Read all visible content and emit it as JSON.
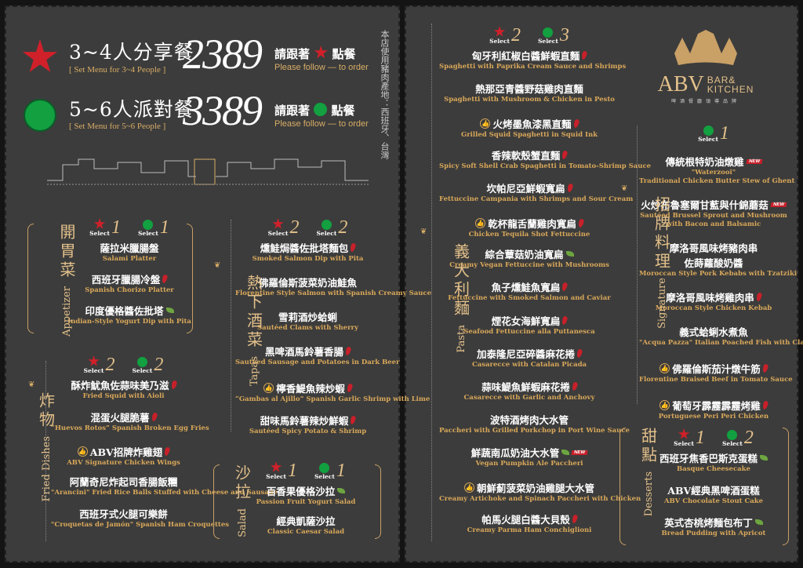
{
  "colors": {
    "background": "#3c3c3c",
    "gold": "#d9a85a",
    "star": "#d0202a",
    "circle": "#12a040"
  },
  "header": {
    "sets": [
      {
        "marker": "star-icon",
        "title": "3~4人分享餐",
        "subtitle": "[  Set Menu for 3~4 People  ]",
        "price": "2389",
        "follow_cn_a": "請跟著",
        "follow_cn_b": "點餐",
        "follow_en": "Please follow — to order"
      },
      {
        "marker": "circle-icon",
        "title": "5~6人派對餐",
        "subtitle": "[  Set Menu for 5~6 People  ]",
        "price": "3389",
        "follow_cn_a": "請跟著",
        "follow_cn_b": "點餐",
        "follow_en": "Please follow — to order"
      }
    ],
    "pork_origin_note": "本店使用豬肉產地：西班牙、台灣"
  },
  "logo": {
    "brand": "ABV",
    "line1": "BAR&",
    "line2": "KITCHEN",
    "tagline": "啤酒餐廳領導品牌"
  },
  "select_label": "Select",
  "sections": {
    "appetizer": {
      "cn": "開胃菜",
      "en": "Appetizer",
      "select": {
        "star": "1",
        "circle": "1"
      },
      "items": [
        {
          "cn": "薩拉米臘腸盤",
          "en": "Salami Platter"
        },
        {
          "cn": "西班牙臘腸冷盤",
          "en": "Spanish Chorizo Platter",
          "suffix": [
            "chili"
          ]
        },
        {
          "cn": "印度優格醬佐批塔",
          "en": "Indian-Style Yogurt Dip with Pita",
          "suffix": [
            "leaf"
          ]
        }
      ]
    },
    "fried": {
      "cn": "炸物",
      "en": "Fried Dishes",
      "select": {
        "star": "2",
        "circle": "2"
      },
      "items": [
        {
          "cn": "酥炸魷魚佐蒜味美乃滋",
          "en": "Fried Squid with Aioli",
          "suffix": [
            "chili"
          ]
        },
        {
          "cn": "混蛋火腿脆薯",
          "en": "“Huevos Rotos” Spanish Broken Egg Fries",
          "suffix": [
            "chili"
          ]
        },
        {
          "cn": "ABV招牌炸雞翅",
          "en": "ABV Signature Chicken Wings",
          "prefix": "thumb",
          "suffix": [
            "chili"
          ]
        },
        {
          "cn": "阿蘭奇尼炸起司香腸飯糰",
          "en": "\"Arancini\" Fried Rice Balls Stuffed with Cheese and Sausage"
        },
        {
          "cn": "西班牙式火腿可樂餅",
          "en": "\"Croquetas de Jamón\" Spanish Ham Croquettes"
        }
      ]
    },
    "tapas": {
      "cn": "熱下酒菜",
      "en": "Tapas",
      "select": {
        "star": "2",
        "circle": "2"
      },
      "items": [
        {
          "cn": "燻鮭焗醬佐批塔麵包",
          "en": "Smoked Salmon Dip with Pita",
          "suffix": [
            "chili"
          ]
        },
        {
          "cn": "佛羅倫斯菠菜奶油鮭魚",
          "en": "Florentine Style Salmon with Spanish Creamy Sauce"
        },
        {
          "cn": "雪莉酒炒蛤蜊",
          "en": "Sautéed Clams with Sherry"
        },
        {
          "cn": "黑啤酒馬鈴薯香腸",
          "en": "Sautéed Sausage and Potatoes in Dark Beer",
          "suffix": [
            "chili"
          ]
        },
        {
          "cn": "檸香鯷魚辣炒蝦",
          "en": "“Gambas al Ajillo” Spanish Garlic Shrimp with Lime",
          "prefix": "thumb",
          "suffix": [
            "chili"
          ]
        },
        {
          "cn": "甜味馬鈴薯辣炒鮮蝦",
          "en": "Sautéed Spicy Potato & Shrimp",
          "suffix": [
            "chili"
          ]
        }
      ]
    },
    "salad": {
      "cn": "沙拉",
      "en": "Salad",
      "select": {
        "star": "1",
        "circle": "1"
      },
      "items": [
        {
          "cn": "百香果優格沙拉",
          "en": "Passion Fruit Yogurt Salad",
          "suffix": [
            "leaf"
          ]
        },
        {
          "cn": "經典凱薩沙拉",
          "en": "Classic Caesar Salad"
        }
      ]
    },
    "pasta": {
      "cn": "義大利麵",
      "en": "Pasta",
      "select": {
        "star": "2",
        "circle": "3"
      },
      "items": [
        {
          "cn": "匈牙利紅椒白醬鮮蝦直麵",
          "en": "Spaghetti with Paprika Cream Sauce and Shrimps",
          "suffix": [
            "chili"
          ]
        },
        {
          "cn": "熱那亞青醬野菇雞肉直麵",
          "en": "Spaghetti with Mushroom & Chicken in Pesto"
        },
        {
          "cn": "火烤墨魚漆黑直麵",
          "en": "Grilled Squid Spaghetti in Squid Ink",
          "prefix": "thumb",
          "suffix": [
            "chili"
          ]
        },
        {
          "cn": "香辣軟殼蟹直麵",
          "en": "Spicy Soft Shell Crab Spaghetti in Tomato-Shrimp Sauce",
          "suffix": [
            "chili"
          ]
        },
        {
          "cn": "坎帕尼亞鮮蝦寬扁",
          "en": "Fettuccine Campania with Shrimps and Sour Cream",
          "suffix": [
            "chili"
          ]
        },
        {
          "cn": "乾杯龍舌蘭雞肉寬扁",
          "en": "Chicken Tequila Shot Fettuccine",
          "prefix": "thumb",
          "suffix": [
            "chili"
          ]
        },
        {
          "cn": "綜合蕈菇奶油寬扁",
          "en": "Creamy Vegan Fettuccine with Mushrooms",
          "suffix": [
            "leaf"
          ]
        },
        {
          "cn": "魚子燻鮭魚寬扁",
          "en": "Fettuccine with Smoked Salmon and Caviar",
          "suffix": [
            "chili"
          ]
        },
        {
          "cn": "煙花女海鮮寬扁",
          "en": "Seafood Fettuccine alla Puttanesca",
          "suffix": [
            "chili"
          ]
        },
        {
          "cn": "加泰隆尼亞碎醬麻花捲",
          "en": "Casarecce with Catalan Picada",
          "suffix": [
            "chili"
          ]
        },
        {
          "cn": "蒜味鯷魚鮮蝦麻花捲",
          "en": "Casarecce with Garlic and Anchovy",
          "suffix": [
            "chili"
          ]
        },
        {
          "cn": "波特酒烤肉大水管",
          "en": "Paccheri with Grilled Porkchop in Port Wine Sauce"
        },
        {
          "cn": "鮮蔬南瓜奶油大水管",
          "en": "Vegan Pumpkin Ale Paccheri",
          "suffix": [
            "leaf",
            "new"
          ]
        },
        {
          "cn": "朝鮮薊菠菜奶油雞腿大水管",
          "en": "Creamy Artichoke and Spinach Paccheri with Chicken",
          "prefix": "thumb"
        },
        {
          "cn": "帕馬火腿白醬大貝殼",
          "en": "Creamy Parma Ham Conchiglioni",
          "suffix": [
            "chili"
          ]
        }
      ]
    },
    "signature": {
      "cn": "招牌料理",
      "en": "Signature",
      "select": {
        "circle": "1"
      },
      "items": [
        {
          "cn": "傳統根特奶油燉雞",
          "en": "\"Waterzooi\"",
          "en2": "Traditional Chicken Butter Stew of Ghent",
          "suffix": [
            "new"
          ]
        },
        {
          "cn": "火炒布魯塞爾甘藍與什錦蘑菇",
          "en": "Sautéed Brussel Sprout and Mushroom",
          "en2": "with Bacon and Balsamic",
          "suffix": [
            "new"
          ]
        },
        {
          "cn": "摩洛哥風味烤豬肉串",
          "cn2": "佐蒔蘿酸奶醬",
          "en": "Moroccan Style Pork Kebabs with Tzatziki"
        },
        {
          "cn": "摩洛哥風味烤雞肉串",
          "en": "Moroccan Style Chicken Kebab",
          "suffix": [
            "chili"
          ]
        },
        {
          "cn": "義式蛤蜊水煮魚",
          "en": "\"Acqua Pazza\" Italian Poached Fish with Clams"
        },
        {
          "cn": "佛羅倫斯茄汁燉牛筋",
          "en": "Florentine Braised Beef in Tomato Sauce",
          "prefix": "thumb",
          "suffix": [
            "chili"
          ]
        },
        {
          "cn": "葡萄牙霹靂霹靂烤雞",
          "en": "Portuguese Peri Peri Chicken",
          "prefix": "thumb",
          "suffix": [
            "chili"
          ]
        }
      ]
    },
    "desserts": {
      "cn": "甜點",
      "en": "Desserts",
      "select": {
        "star": "1",
        "circle": "2"
      },
      "items": [
        {
          "cn": "西班牙焦香巴斯克蛋糕",
          "en": "Basque Cheesecake",
          "suffix": [
            "leaf"
          ]
        },
        {
          "cn": "ABV經典黑啤酒蛋糕",
          "en": "ABV Chocolate Stout Cake"
        },
        {
          "cn": "英式杏桃烤麵包布丁",
          "en": "Bread Pudding with Apricot",
          "suffix": [
            "leaf"
          ]
        }
      ]
    }
  },
  "icon_legend": {
    "thumb": "thumbs-up-icon",
    "chili": "chili-pepper-icon",
    "leaf": "vegetarian-leaf-icon",
    "new": "new-badge",
    "new_text": "NEW",
    "thumb_glyph": "👍"
  }
}
